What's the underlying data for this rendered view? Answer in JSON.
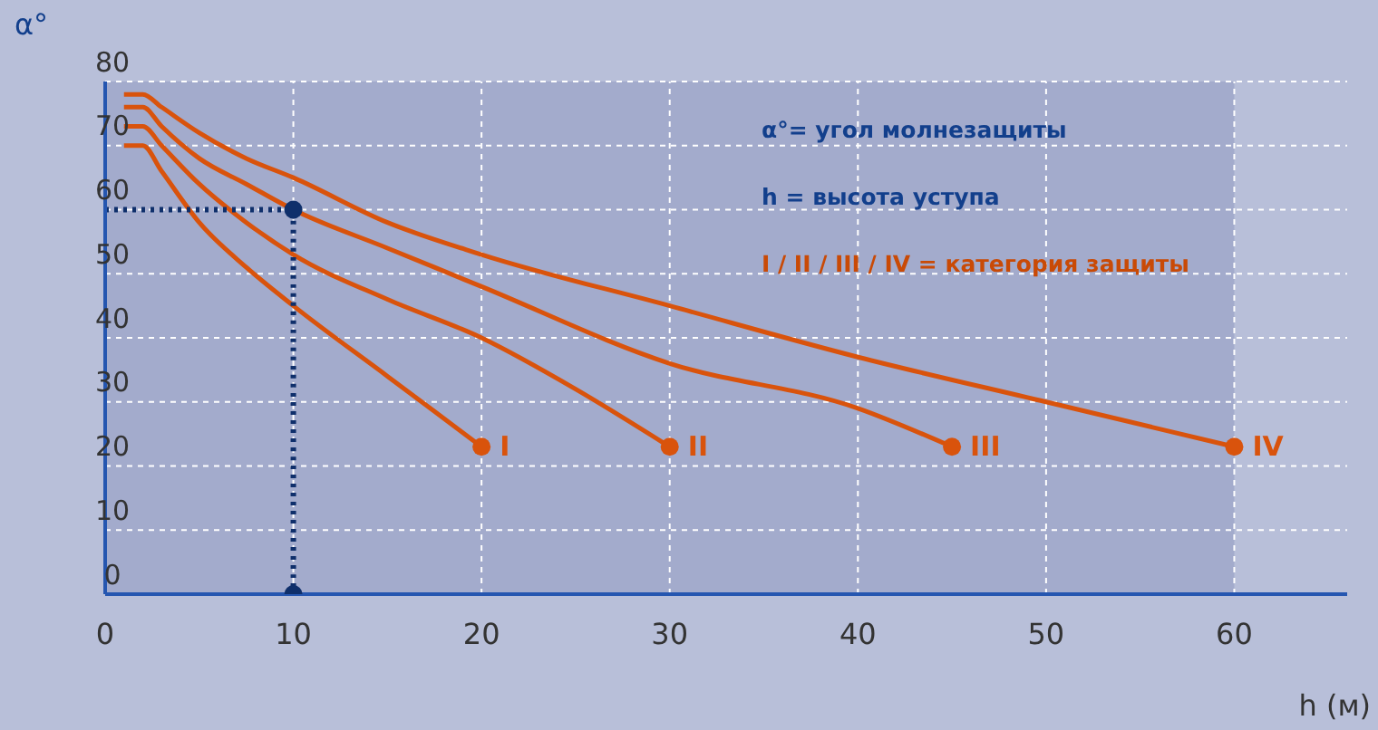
{
  "chart_data": {
    "type": "line",
    "xlabel": "h (м)",
    "ylabel": "α°",
    "xlim": [
      0,
      66
    ],
    "ylim": [
      0,
      80
    ],
    "xticks": [
      0,
      10,
      20,
      30,
      40,
      50,
      60
    ],
    "yticks": [
      0,
      10,
      20,
      30,
      40,
      50,
      60,
      70,
      80
    ],
    "grid": true,
    "line_style": "solid",
    "series": [
      {
        "name": "I",
        "color": "#d9530c",
        "x": [
          1,
          2,
          3,
          5,
          7.5,
          10,
          15,
          20
        ],
        "values": [
          70,
          70,
          66,
          58,
          51,
          45,
          34,
          23
        ]
      },
      {
        "name": "II",
        "color": "#d9530c",
        "x": [
          1,
          2,
          3,
          5,
          7.5,
          10,
          15,
          20,
          25,
          30
        ],
        "values": [
          73,
          73,
          70,
          64,
          58,
          53,
          46,
          40,
          32,
          23
        ]
      },
      {
        "name": "III",
        "color": "#d9530c",
        "x": [
          1,
          2,
          3,
          5,
          7.5,
          10,
          15,
          20,
          30,
          40,
          45
        ],
        "values": [
          76,
          76,
          73,
          68,
          64,
          60,
          54,
          48,
          36,
          29,
          23
        ]
      },
      {
        "name": "IV",
        "color": "#d9530c",
        "x": [
          1,
          2,
          3,
          5,
          7.5,
          10,
          15,
          20,
          30,
          40,
          50,
          60
        ],
        "values": [
          78,
          78,
          76,
          72,
          68,
          65,
          58,
          53,
          45,
          37,
          30,
          23
        ]
      },
      {
        "type": "line",
        "line_style": "dotted",
        "color": "#0f2f6b",
        "x": [
          0,
          10,
          10
        ],
        "values": [
          60,
          60,
          0
        ]
      },
      {
        "type": "scatter",
        "marker": "circle",
        "color": "#0f2f6b",
        "x": [
          10,
          10
        ],
        "values": [
          60,
          0
        ]
      }
    ],
    "annotations": [
      "α°= угол молнезащиты",
      "h = высота уступа",
      "I / II / III / IV = категория защиты"
    ]
  }
}
